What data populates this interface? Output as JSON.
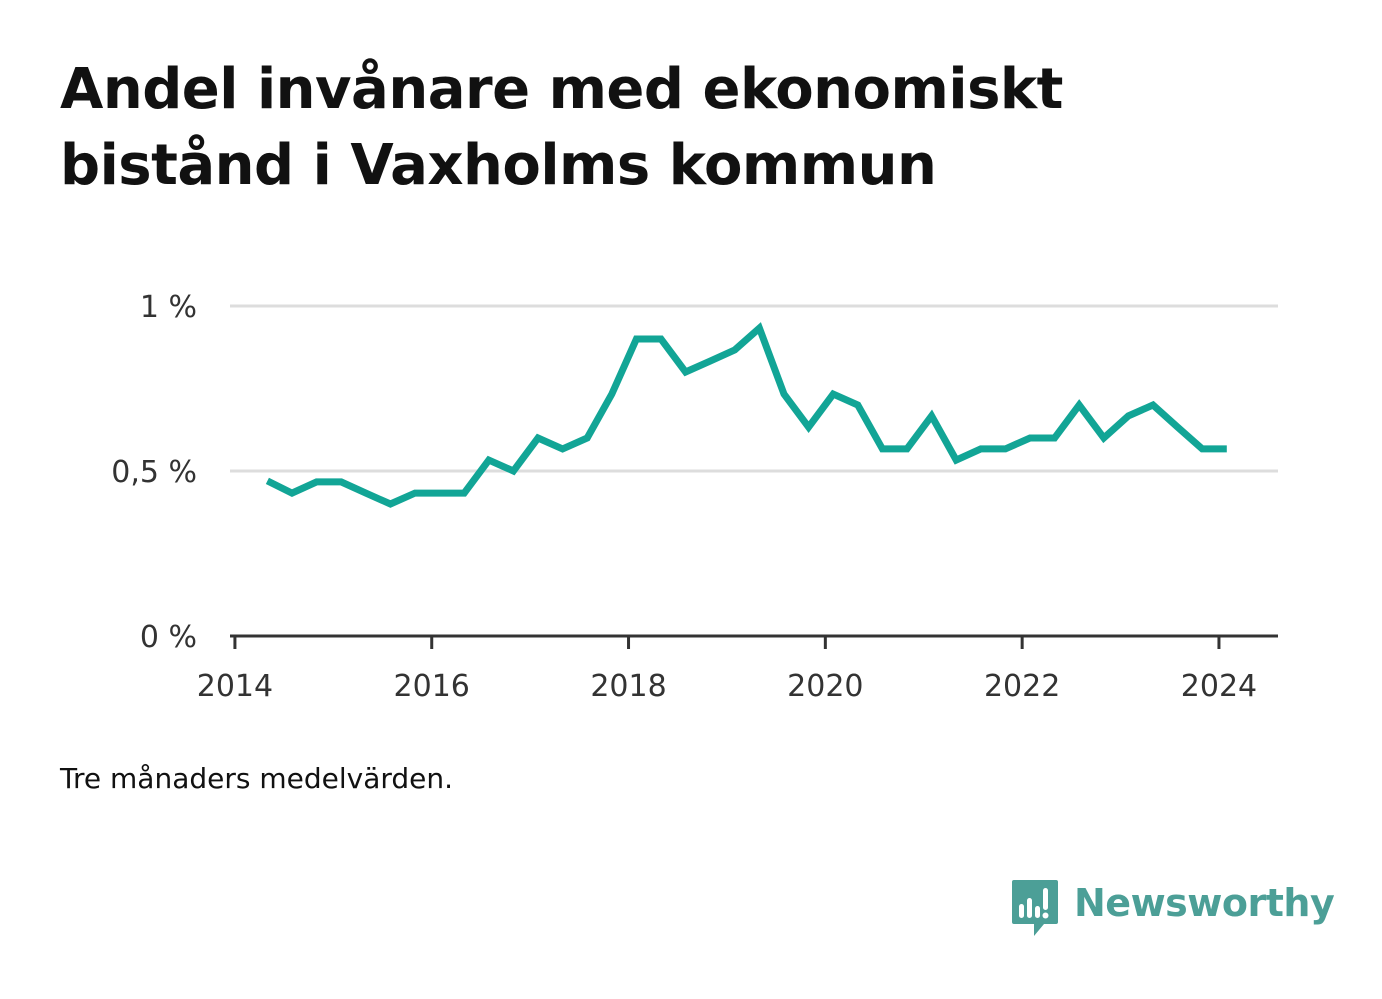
{
  "title_lines": [
    "Andel invånare med ekonomiskt",
    "bistånd i Vaxholms kommun"
  ],
  "note": "Tre månaders medelvärden.",
  "brand": {
    "name": "Newsworthy",
    "icon": "newsworthy-logo-icon",
    "color": "#4c9f97"
  },
  "chart_data": {
    "type": "line",
    "title": "Andel invånare med ekonomiskt bistånd i Vaxholms kommun",
    "xlabel": "",
    "ylabel": "",
    "x_ticks": [
      "2014",
      "2016",
      "2018",
      "2020",
      "2022",
      "2024"
    ],
    "x_tick_values": [
      2014,
      2016,
      2018,
      2020,
      2022,
      2024
    ],
    "y_ticks": [
      "0 %",
      "0,5 %",
      "1 %"
    ],
    "y_tick_values": [
      0,
      0.5,
      1.0
    ],
    "xlim": [
      2013.95,
      2024.6
    ],
    "ylim": [
      0,
      1.0
    ],
    "grid": true,
    "legend": "none",
    "line_color": "#12a596",
    "series": [
      {
        "x": [
          2014.33,
          2014.58,
          2014.83,
          2015.08,
          2015.33,
          2015.58,
          2015.83,
          2016.08,
          2016.33,
          2016.58,
          2016.83,
          2017.08,
          2017.33,
          2017.58,
          2017.83,
          2018.08,
          2018.33,
          2018.58,
          2018.83,
          2019.08,
          2019.33,
          2019.58,
          2019.83,
          2020.08,
          2020.33,
          2020.58,
          2020.83,
          2021.08,
          2021.33,
          2021.58,
          2021.83,
          2022.08,
          2022.33,
          2022.58,
          2022.83,
          2023.08,
          2023.33,
          2023.58,
          2023.83,
          2024.08
        ],
        "values": [
          0.47,
          0.433,
          0.467,
          0.467,
          0.433,
          0.4,
          0.433,
          0.433,
          0.433,
          0.533,
          0.5,
          0.6,
          0.567,
          0.6,
          0.733,
          0.9,
          0.9,
          0.8,
          0.833,
          0.867,
          0.933,
          0.733,
          0.633,
          0.733,
          0.7,
          0.567,
          0.567,
          0.667,
          0.533,
          0.567,
          0.567,
          0.6,
          0.6,
          0.7,
          0.6,
          0.667,
          0.7,
          0.633,
          0.567,
          0.567
        ]
      }
    ]
  }
}
